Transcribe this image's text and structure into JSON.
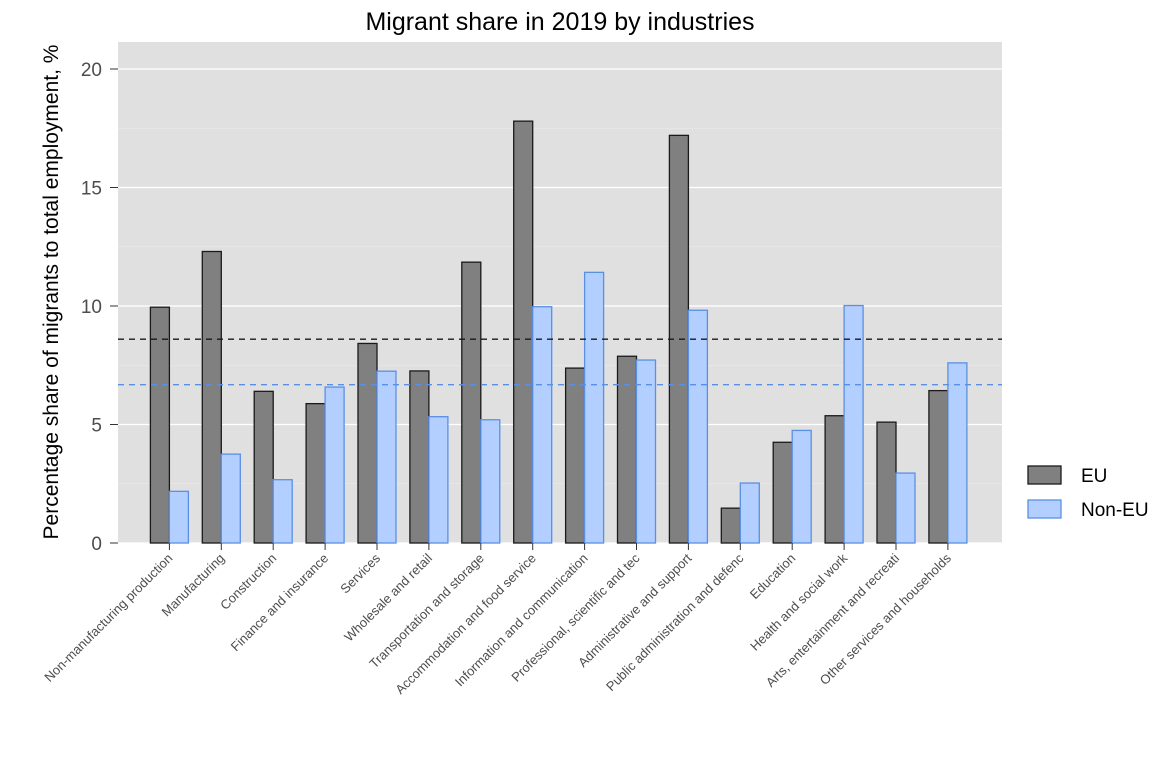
{
  "chart_data": {
    "type": "bar",
    "title": "Migrant share in 2019 by industries",
    "ylabel": "Percentage share of migrants to total employment, %",
    "xlabel": "",
    "ylim": [
      0,
      20
    ],
    "yticks": [
      0,
      5,
      10,
      15,
      20
    ],
    "grid": true,
    "legend_position": "right",
    "categories": [
      "Non-manufacturing production",
      "Manufacturing",
      "Construction",
      "Finance and insurance",
      "Services",
      "Wholesale and retail",
      "Transportation and storage",
      "Accommodation and food service",
      "Information and communication",
      "Professional, scientific and tec",
      "Administrative and support",
      "Public administration and defenc",
      "Education",
      "Health and social work",
      "Arts, entertainment and recreati",
      "Other services and households"
    ],
    "series": [
      {
        "name": "EU",
        "color": "#808080",
        "stroke": "#1a1a1a",
        "values": [
          9.95,
          12.3,
          6.4,
          5.88,
          8.42,
          7.26,
          11.85,
          17.8,
          7.38,
          7.88,
          17.2,
          1.47,
          4.25,
          5.37,
          5.1,
          6.43
        ],
        "average": 8.6,
        "average_line_color": "#1a1a1a"
      },
      {
        "name": "Non-EU",
        "color": "#b3cfff",
        "stroke": "#5a8fe6",
        "values": [
          2.18,
          3.75,
          2.67,
          6.58,
          7.25,
          5.33,
          5.2,
          9.97,
          11.42,
          7.72,
          9.82,
          2.53,
          4.75,
          10.02,
          2.95,
          7.6
        ],
        "average": 6.68,
        "average_line_color": "#5a8fe6"
      }
    ],
    "panel_background": "#e0e0e0"
  }
}
